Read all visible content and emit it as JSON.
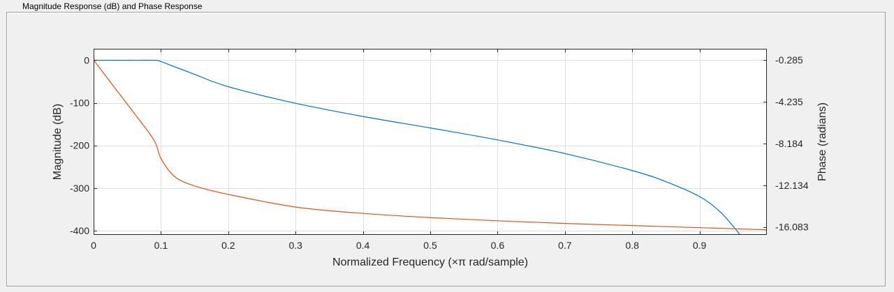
{
  "panel": {
    "title": "Magnitude Response (dB) and Phase Response"
  },
  "chart_data": {
    "type": "line",
    "title": "",
    "xlabel": "Normalized Frequency (×π rad/sample)",
    "ylabel_left": "Magnitude (dB)",
    "ylabel_right": "Phase (radians)",
    "xlim": [
      0,
      1
    ],
    "ylim_left": [
      -410,
      27
    ],
    "ylim_right": [
      -16.83,
      0.77
    ],
    "grid": true,
    "x_ticks": [
      0,
      0.1,
      0.2,
      0.3,
      0.4,
      0.5,
      0.6,
      0.7,
      0.8,
      0.9
    ],
    "x_tick_labels": [
      "0",
      "0.1",
      "0.2",
      "0.3",
      "0.4",
      "0.5",
      "0.6",
      "0.7",
      "0.8",
      "0.9"
    ],
    "y_left_ticks": [
      0,
      -100,
      -200,
      -300,
      -400
    ],
    "y_left_tick_labels": [
      "0",
      "-100",
      "-200",
      "-300",
      "-400"
    ],
    "y_right_ticks": [
      -0.285,
      -4.235,
      -8.184,
      -12.134,
      -16.083
    ],
    "y_right_tick_labels": [
      "-0.285",
      "-4.235",
      "-8.184",
      "-12.134",
      "-16.083"
    ],
    "series": [
      {
        "axis": "left",
        "color": "#0072bd",
        "x": [
          0,
          0.05,
          0.09,
          0.1,
          0.12,
          0.15,
          0.2,
          0.3,
          0.4,
          0.5,
          0.6,
          0.7,
          0.8,
          0.85,
          0.9,
          0.93,
          0.95,
          0.96
        ],
        "y": [
          0,
          0,
          0,
          -3,
          -15,
          -33,
          -62,
          -101,
          -132,
          -159,
          -187,
          -219,
          -259,
          -285,
          -320,
          -355,
          -390,
          -410
        ]
      },
      {
        "axis": "right",
        "color": "#d95319",
        "x": [
          0,
          0.03,
          0.06,
          0.09,
          0.1,
          0.12,
          0.15,
          0.2,
          0.3,
          0.4,
          0.5,
          0.6,
          0.7,
          0.8,
          0.9,
          1.0
        ],
        "y": [
          -0.285,
          -2.8,
          -5.3,
          -7.9,
          -9.6,
          -11.3,
          -12.2,
          -13.0,
          -14.2,
          -14.8,
          -15.2,
          -15.5,
          -15.75,
          -15.95,
          -16.15,
          -16.35
        ]
      }
    ]
  }
}
